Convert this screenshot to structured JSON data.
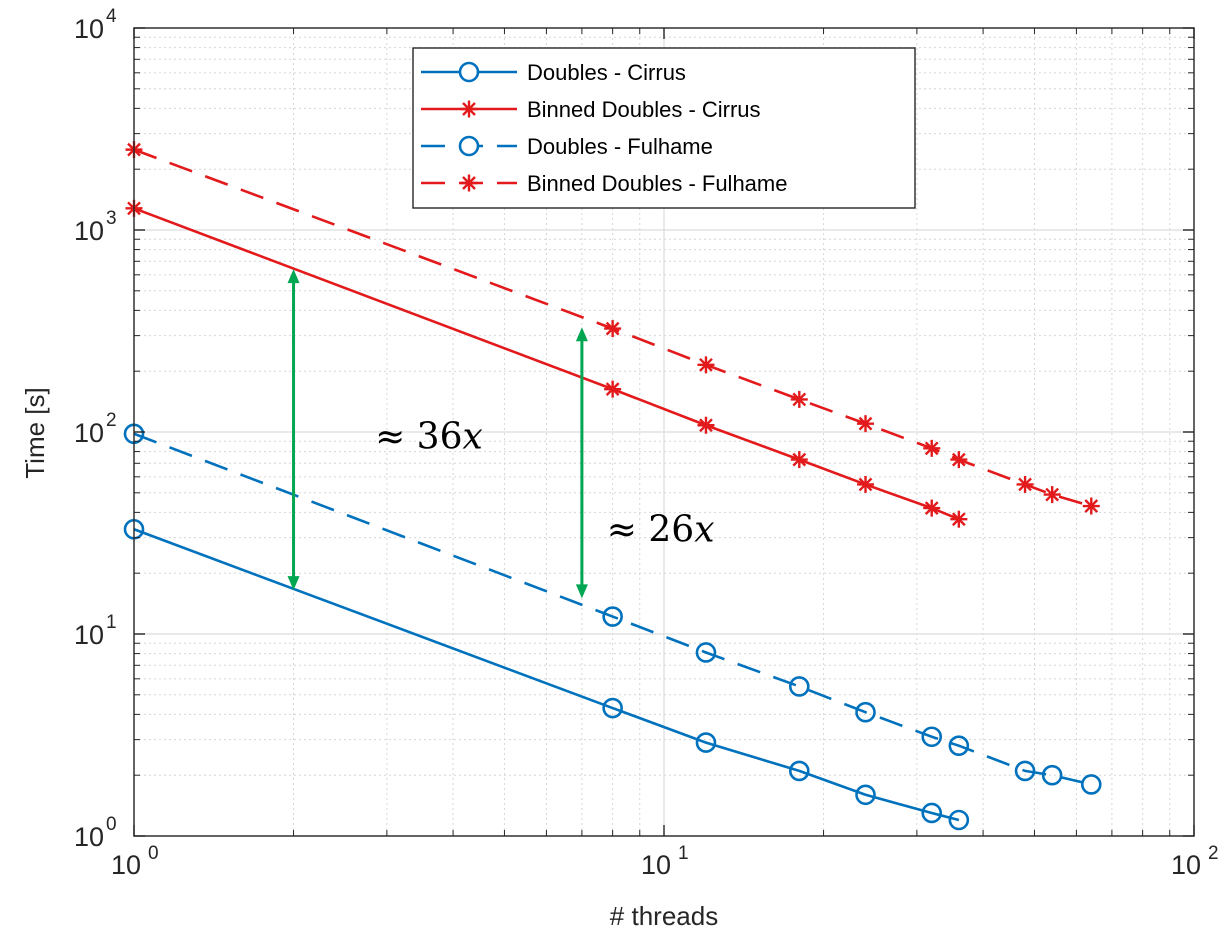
{
  "chart_data": {
    "type": "line",
    "xlabel": "# threads",
    "ylabel": "Time [s]",
    "xscale": "log",
    "yscale": "log",
    "xlim": [
      1,
      100
    ],
    "ylim": [
      1,
      10000
    ],
    "grid": true,
    "minor_grid": true,
    "x_tick_labels": [
      {
        "value": 1,
        "base": "10",
        "exp": "0"
      },
      {
        "value": 10,
        "base": "10",
        "exp": "1"
      },
      {
        "value": 100,
        "base": "10",
        "exp": "2"
      }
    ],
    "y_tick_labels": [
      {
        "value": 1,
        "base": "10",
        "exp": "0"
      },
      {
        "value": 10,
        "base": "10",
        "exp": "1"
      },
      {
        "value": 100,
        "base": "10",
        "exp": "2"
      },
      {
        "value": 1000,
        "base": "10",
        "exp": "3"
      },
      {
        "value": 10000,
        "base": "10",
        "exp": "4"
      }
    ],
    "legend_position": "top-center",
    "series": [
      {
        "name": "Doubles - Cirrus",
        "color": "#0072BD",
        "dash": "solid",
        "marker": "circle",
        "x": [
          1,
          8,
          12,
          18,
          24,
          32,
          36
        ],
        "y": [
          33,
          4.3,
          2.9,
          2.1,
          1.6,
          1.3,
          1.2
        ]
      },
      {
        "name": "Binned Doubles - Cirrus",
        "color": "#E31A1C",
        "dash": "solid",
        "marker": "star",
        "x": [
          1,
          8,
          12,
          18,
          24,
          32,
          36
        ],
        "y": [
          1280,
          163,
          108,
          73,
          55,
          42,
          37
        ]
      },
      {
        "name": "Doubles - Fulhame",
        "color": "#0072BD",
        "dash": "dashed",
        "marker": "circle",
        "x": [
          1,
          8,
          12,
          18,
          24,
          32,
          36,
          48,
          54,
          64
        ],
        "y": [
          98,
          12.2,
          8.1,
          5.5,
          4.1,
          3.1,
          2.8,
          2.1,
          2.0,
          1.8
        ]
      },
      {
        "name": "Binned Doubles - Fulhame",
        "color": "#E31A1C",
        "dash": "dashed",
        "marker": "star",
        "x": [
          1,
          8,
          12,
          18,
          24,
          32,
          36,
          48,
          54,
          64
        ],
        "y": [
          2500,
          325,
          215,
          145,
          110,
          83,
          73,
          55,
          49,
          43
        ]
      }
    ],
    "annotations": [
      {
        "text": "≈ 36𝑥",
        "arrow_x": 2,
        "arrow_y": [
          16.5,
          640
        ],
        "label_x": 2.85,
        "label_y": 95,
        "color": "#00A651"
      },
      {
        "text": "≈ 26𝑥",
        "arrow_x": 7,
        "arrow_y": [
          15,
          330
        ],
        "label_x": 7.8,
        "label_y": 33,
        "color": "#00A651"
      }
    ]
  }
}
